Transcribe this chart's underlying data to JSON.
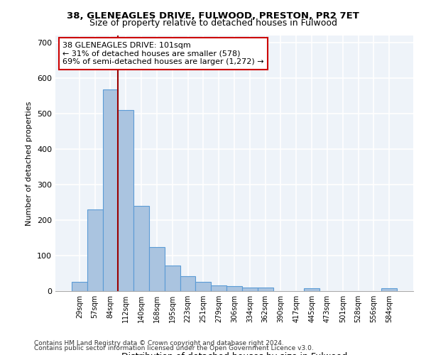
{
  "title_line1": "38, GLENEAGLES DRIVE, FULWOOD, PRESTON, PR2 7ET",
  "title_line2": "Size of property relative to detached houses in Fulwood",
  "xlabel": "Distribution of detached houses by size in Fulwood",
  "ylabel": "Number of detached properties",
  "footer_line1": "Contains HM Land Registry data © Crown copyright and database right 2024.",
  "footer_line2": "Contains public sector information licensed under the Open Government Licence v3.0.",
  "categories": [
    "29sqm",
    "57sqm",
    "84sqm",
    "112sqm",
    "140sqm",
    "168sqm",
    "195sqm",
    "223sqm",
    "251sqm",
    "279sqm",
    "306sqm",
    "334sqm",
    "362sqm",
    "390sqm",
    "417sqm",
    "445sqm",
    "473sqm",
    "501sqm",
    "528sqm",
    "556sqm",
    "584sqm"
  ],
  "values": [
    27,
    230,
    568,
    510,
    240,
    124,
    72,
    42,
    27,
    16,
    15,
    10,
    11,
    1,
    1,
    8,
    0,
    0,
    0,
    0,
    8
  ],
  "bar_color": "#aac4e0",
  "bar_edge_color": "#5b9bd5",
  "bg_color": "#eef3f9",
  "grid_color": "#ffffff",
  "property_line_x": 2.5,
  "annotation_text": "38 GLENEAGLES DRIVE: 101sqm\n← 31% of detached houses are smaller (578)\n69% of semi-detached houses are larger (1,272) →",
  "annotation_box_color": "#ffffff",
  "annotation_box_edge_color": "#cc0000",
  "vline_color": "#9b0000",
  "ylim": [
    0,
    720
  ],
  "yticks": [
    0,
    100,
    200,
    300,
    400,
    500,
    600,
    700
  ]
}
